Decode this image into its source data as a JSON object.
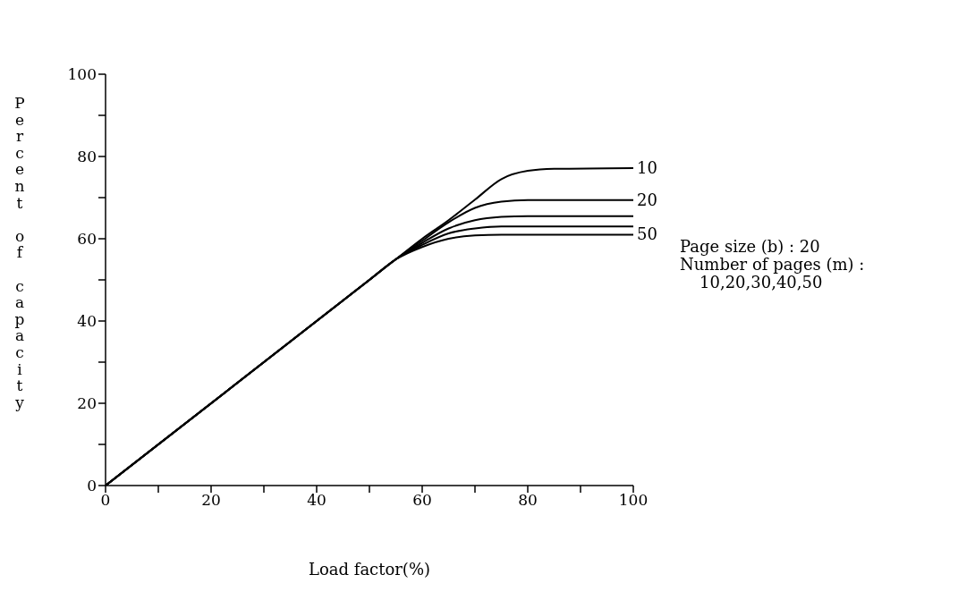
{
  "chart_data": {
    "type": "line",
    "xlabel": "Load factor(%)",
    "ylabel": "Percent of capacity",
    "xlim": [
      0,
      100
    ],
    "ylim": [
      0,
      100
    ],
    "xticks": [
      0,
      {
        "value": 10,
        "label": null
      },
      20,
      {
        "value": 30,
        "label": null
      },
      40,
      {
        "value": 50,
        "label": null
      },
      60,
      {
        "value": 70,
        "label": null
      },
      80,
      {
        "value": 90,
        "label": null
      },
      100
    ],
    "yticks": [
      0,
      {
        "value": 10,
        "label": null
      },
      20,
      {
        "value": 30,
        "label": null
      },
      40,
      {
        "value": 50,
        "label": null
      },
      60,
      {
        "value": 70,
        "label": null
      },
      80,
      {
        "value": 90,
        "label": null
      },
      100
    ],
    "grid": false,
    "legend": false,
    "marker": "none",
    "line_style": "solid",
    "series": [
      {
        "name": "10",
        "color": "#000000",
        "x": [
          0,
          50,
          55,
          60,
          65,
          70,
          75,
          80,
          85,
          100
        ],
        "values": [
          0,
          50,
          55,
          60,
          64.5,
          69.5,
          74.5,
          76.5,
          77,
          77.2
        ]
      },
      {
        "name": "20",
        "color": "#000000",
        "x": [
          0,
          50,
          55,
          60,
          65,
          70,
          75,
          80,
          100
        ],
        "values": [
          0,
          50,
          55,
          59.5,
          64,
          67.5,
          69,
          69.4,
          69.4
        ]
      },
      {
        "color": "#000000",
        "x": [
          0,
          50,
          55,
          60,
          65,
          70,
          75,
          80,
          100
        ],
        "values": [
          0,
          50,
          55,
          59,
          62.5,
          64.5,
          65.3,
          65.5,
          65.5
        ]
      },
      {
        "color": "#000000",
        "x": [
          0,
          50,
          55,
          60,
          65,
          70,
          75,
          100
        ],
        "values": [
          0,
          50,
          55,
          58.5,
          61.3,
          62.5,
          63,
          63
        ]
      },
      {
        "name": "50",
        "color": "#000000",
        "x": [
          0,
          50,
          55,
          60,
          65,
          70,
          75,
          100
        ],
        "values": [
          0,
          50,
          55,
          58,
          60,
          60.8,
          61,
          61
        ]
      }
    ],
    "annotations": [
      "Page size (b) : 20",
      "Number of pages (m) :",
      "10,20,30,40,50"
    ]
  }
}
